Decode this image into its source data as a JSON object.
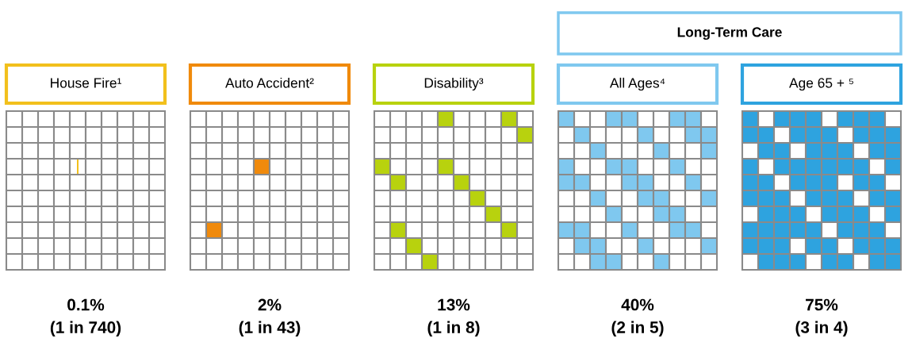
{
  "chart_data": {
    "type": "other",
    "categories": [
      "House Fire¹",
      "Auto Accident²",
      "Disability³",
      "All Ages⁴",
      "Age 65 + ⁵"
    ],
    "values": [
      0.1,
      2,
      13,
      40,
      75
    ],
    "value_labels": [
      "0.1%\n(1 in 740)",
      "2%\n(1 in 43)",
      "13%\n(1 in 8)",
      "40%\n(2 in 5)",
      "75%\n(3 in 4)"
    ],
    "colors": [
      "#f2c01c",
      "#f08a0c",
      "#b8d20e",
      "#7fc8ef",
      "#2ea3df"
    ],
    "annotations": [
      "Long-Term Care"
    ]
  }
}
